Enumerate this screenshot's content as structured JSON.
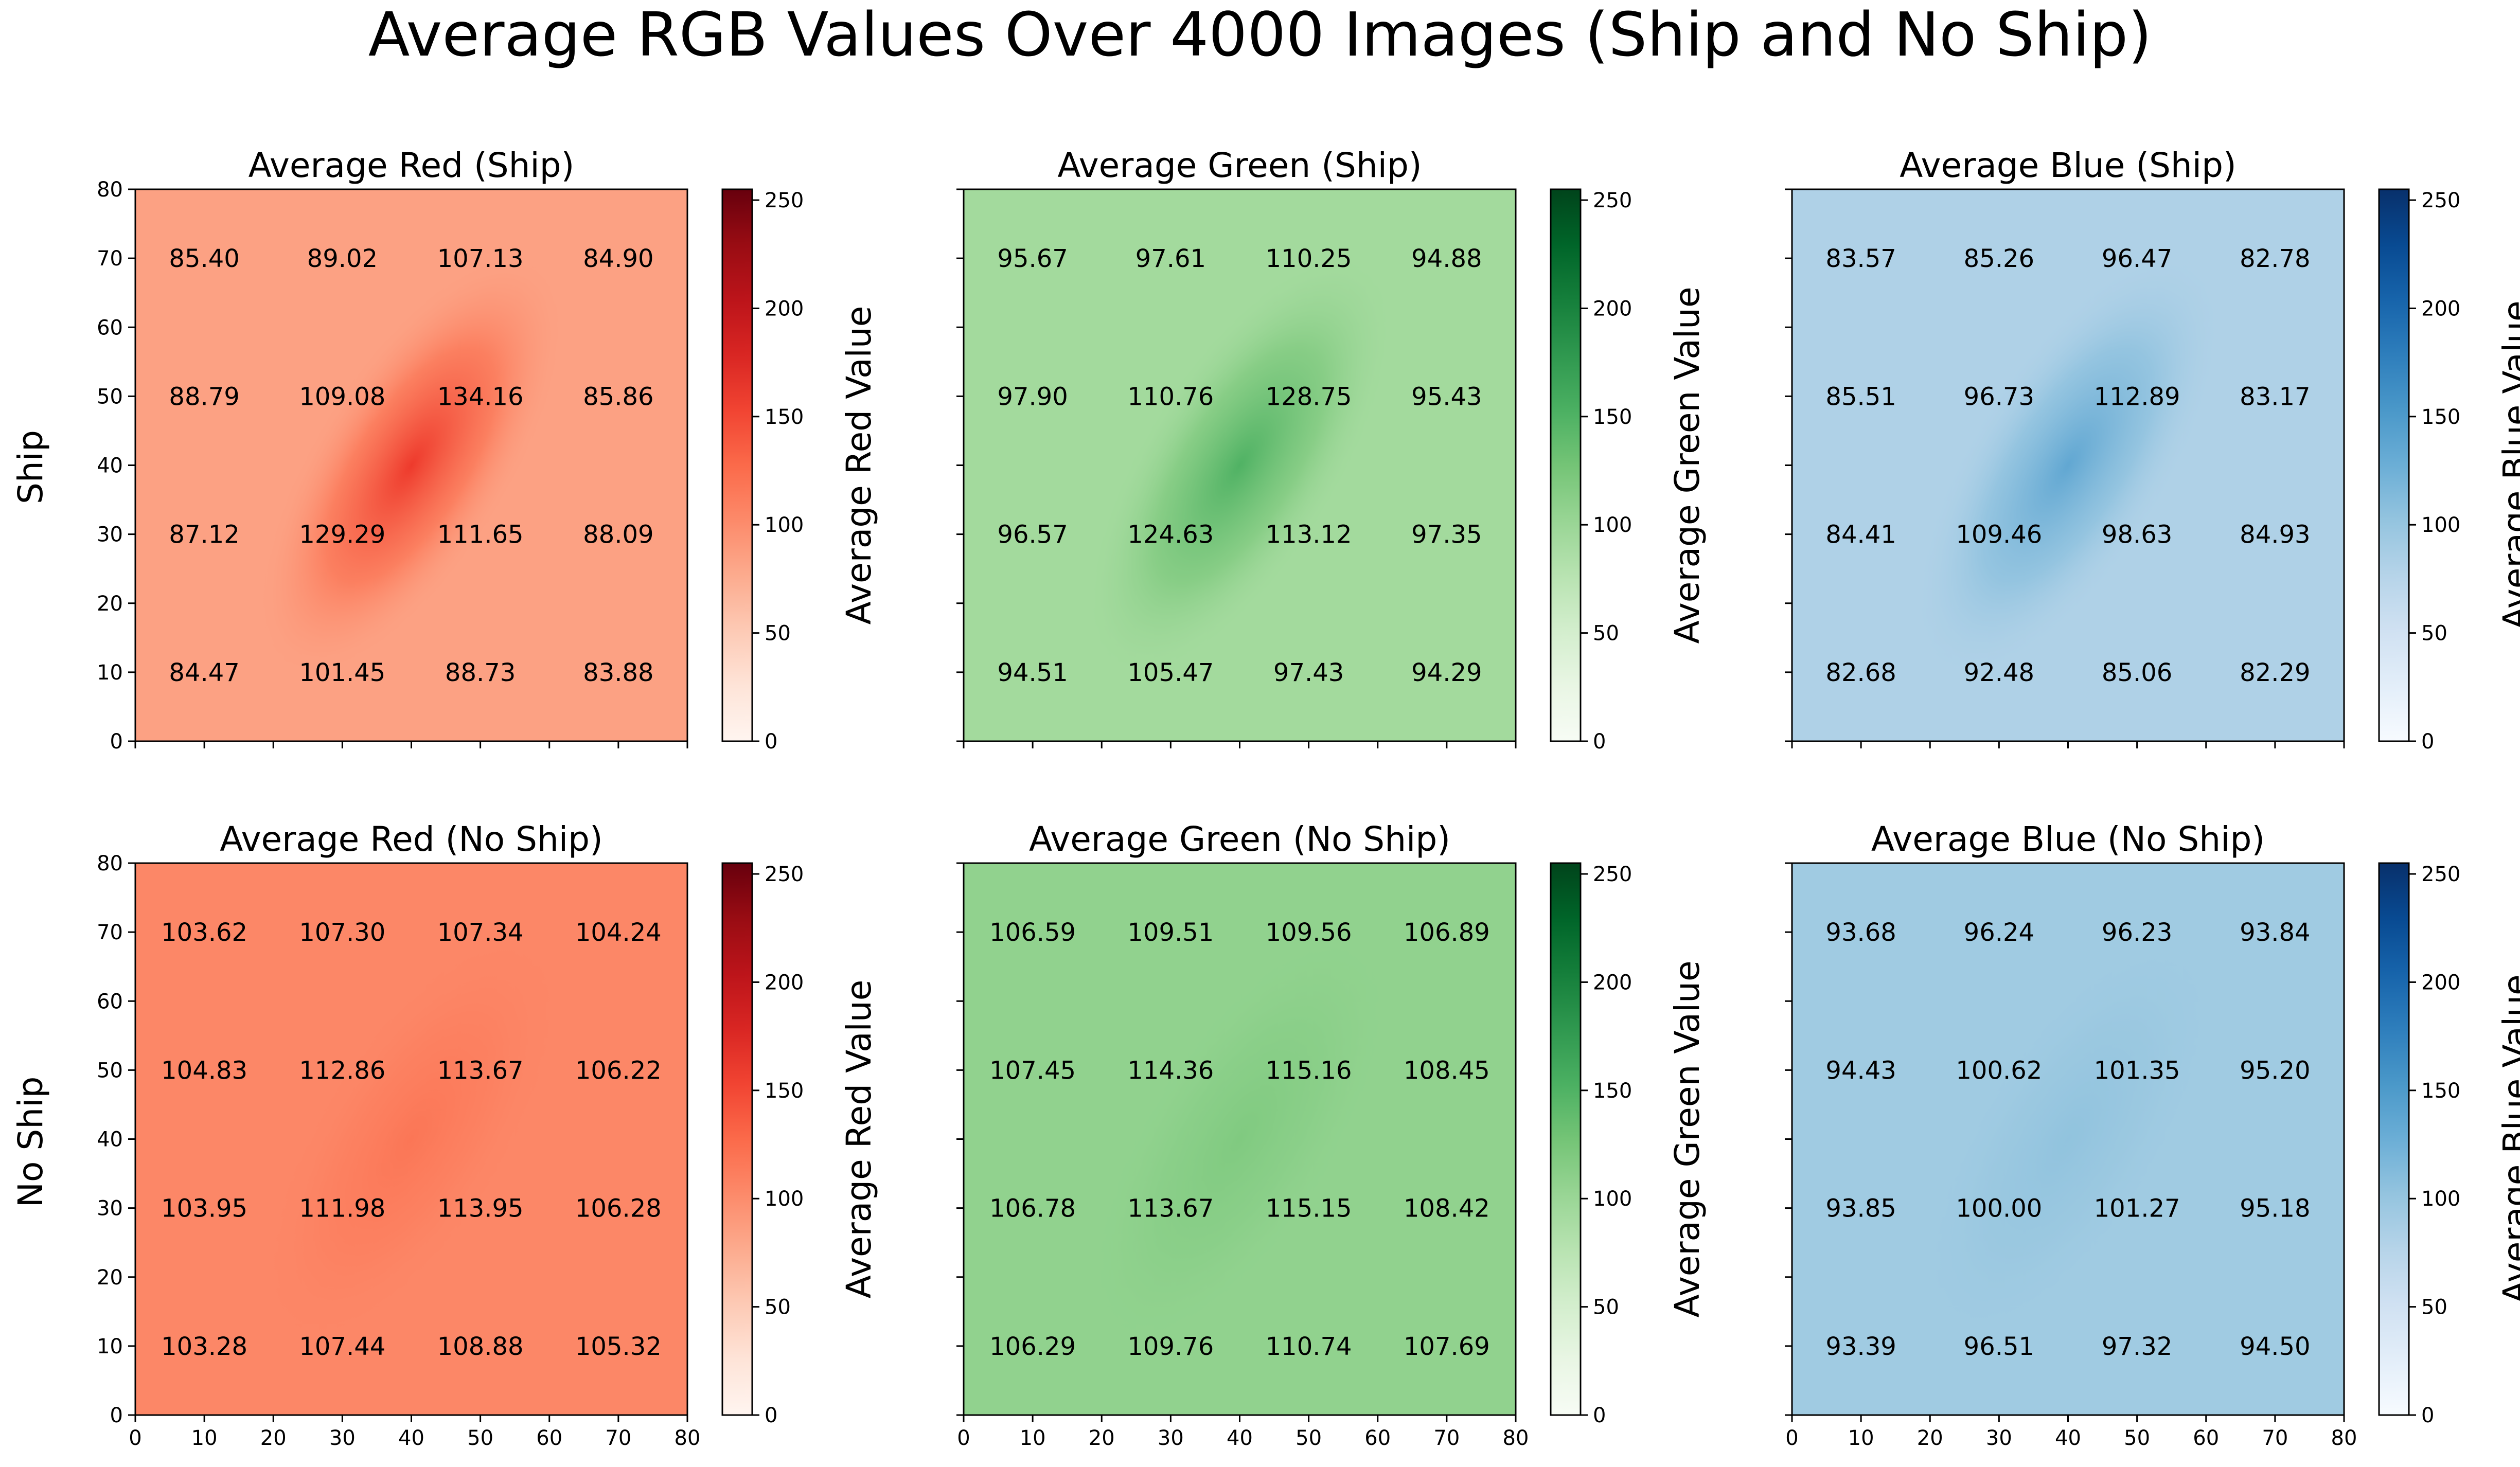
{
  "title": "Average RGB Values Over 4000 Images (Ship and No Ship)",
  "row_labels": [
    "Ship",
    "No Ship"
  ],
  "chart_data": [
    {
      "type": "heatmap",
      "title": "Average Red (Ship)",
      "color": "red",
      "colorbar_label": "Average Red Value",
      "colorbar_ticks": [
        0,
        50,
        100,
        150,
        200,
        250
      ],
      "clim": [
        0,
        255
      ],
      "xlim": [
        0,
        80
      ],
      "ylim": [
        0,
        80
      ],
      "xticks": [
        0,
        10,
        20,
        30,
        40,
        50,
        60,
        70,
        80
      ],
      "yticks": [
        0,
        10,
        20,
        30,
        40,
        50,
        60,
        70,
        80
      ],
      "cell_centers": [
        10,
        30,
        50,
        70
      ],
      "grid_values": [
        [
          84.47,
          101.45,
          88.73,
          83.88
        ],
        [
          87.12,
          129.29,
          111.65,
          88.09
        ],
        [
          88.79,
          109.08,
          134.16,
          85.86
        ],
        [
          85.4,
          89.02,
          107.13,
          84.9
        ]
      ],
      "grid_labels": [
        [
          "84.47",
          "101.45",
          "88.73",
          "83.88"
        ],
        [
          "87.12",
          "129.29",
          "111.65",
          "88.09"
        ],
        [
          "88.79",
          "109.08",
          "134.16",
          "85.86"
        ],
        [
          "85.40",
          "89.02",
          "107.13",
          "84.90"
        ]
      ],
      "background_value": 84,
      "peak_value": 160
    },
    {
      "type": "heatmap",
      "title": "Average Green (Ship)",
      "color": "green",
      "colorbar_label": "Average Green Value",
      "colorbar_ticks": [
        0,
        50,
        100,
        150,
        200,
        250
      ],
      "clim": [
        0,
        255
      ],
      "xlim": [
        0,
        80
      ],
      "ylim": [
        0,
        80
      ],
      "xticks": [
        0,
        10,
        20,
        30,
        40,
        50,
        60,
        70,
        80
      ],
      "yticks": [
        0,
        10,
        20,
        30,
        40,
        50,
        60,
        70,
        80
      ],
      "cell_centers": [
        10,
        30,
        50,
        70
      ],
      "grid_values": [
        [
          94.51,
          105.47,
          97.43,
          94.29
        ],
        [
          96.57,
          124.63,
          113.12,
          97.35
        ],
        [
          97.9,
          110.76,
          128.75,
          95.43
        ],
        [
          95.67,
          97.61,
          110.25,
          94.88
        ]
      ],
      "grid_labels": [
        [
          "94.51",
          "105.47",
          "97.43",
          "94.29"
        ],
        [
          "96.57",
          "124.63",
          "113.12",
          "97.35"
        ],
        [
          "97.90",
          "110.76",
          "128.75",
          "95.43"
        ],
        [
          "95.67",
          "97.61",
          "110.25",
          "94.88"
        ]
      ],
      "background_value": 94,
      "peak_value": 150
    },
    {
      "type": "heatmap",
      "title": "Average Blue (Ship)",
      "color": "blue",
      "colorbar_label": "Average Blue Value",
      "colorbar_ticks": [
        0,
        50,
        100,
        150,
        200,
        250
      ],
      "clim": [
        0,
        255
      ],
      "xlim": [
        0,
        80
      ],
      "ylim": [
        0,
        80
      ],
      "xticks": [
        0,
        10,
        20,
        30,
        40,
        50,
        60,
        70,
        80
      ],
      "yticks": [
        0,
        10,
        20,
        30,
        40,
        50,
        60,
        70,
        80
      ],
      "cell_centers": [
        10,
        30,
        50,
        70
      ],
      "grid_values": [
        [
          82.68,
          92.48,
          85.06,
          82.29
        ],
        [
          84.41,
          109.46,
          98.63,
          84.93
        ],
        [
          85.51,
          96.73,
          112.89,
          83.17
        ],
        [
          83.57,
          85.26,
          96.47,
          82.78
        ]
      ],
      "grid_labels": [
        [
          "82.68",
          "92.48",
          "85.06",
          "82.29"
        ],
        [
          "84.41",
          "109.46",
          "98.63",
          "84.93"
        ],
        [
          "85.51",
          "96.73",
          "112.89",
          "83.17"
        ],
        [
          "83.57",
          "85.26",
          "96.47",
          "82.78"
        ]
      ],
      "background_value": 82,
      "peak_value": 135
    },
    {
      "type": "heatmap",
      "title": "Average Red (No Ship)",
      "color": "red",
      "colorbar_label": "Average Red Value",
      "colorbar_ticks": [
        0,
        50,
        100,
        150,
        200,
        250
      ],
      "clim": [
        0,
        255
      ],
      "xlim": [
        0,
        80
      ],
      "ylim": [
        0,
        80
      ],
      "xticks": [
        0,
        10,
        20,
        30,
        40,
        50,
        60,
        70,
        80
      ],
      "yticks": [
        0,
        10,
        20,
        30,
        40,
        50,
        60,
        70,
        80
      ],
      "cell_centers": [
        10,
        30,
        50,
        70
      ],
      "grid_values": [
        [
          103.28,
          107.44,
          108.88,
          105.32
        ],
        [
          103.95,
          111.98,
          113.95,
          106.28
        ],
        [
          104.83,
          112.86,
          113.67,
          106.22
        ],
        [
          103.62,
          107.3,
          107.34,
          104.24
        ]
      ],
      "grid_labels": [
        [
          "103.28",
          "107.44",
          "108.88",
          "105.32"
        ],
        [
          "103.95",
          "111.98",
          "113.95",
          "106.28"
        ],
        [
          "104.83",
          "112.86",
          "113.67",
          "106.22"
        ],
        [
          "103.62",
          "107.30",
          "107.34",
          "104.24"
        ]
      ],
      "background_value": 104,
      "peak_value": 118
    },
    {
      "type": "heatmap",
      "title": "Average Green (No Ship)",
      "color": "green",
      "colorbar_label": "Average Green Value",
      "colorbar_ticks": [
        0,
        50,
        100,
        150,
        200,
        250
      ],
      "clim": [
        0,
        255
      ],
      "xlim": [
        0,
        80
      ],
      "ylim": [
        0,
        80
      ],
      "xticks": [
        0,
        10,
        20,
        30,
        40,
        50,
        60,
        70,
        80
      ],
      "yticks": [
        0,
        10,
        20,
        30,
        40,
        50,
        60,
        70,
        80
      ],
      "cell_centers": [
        10,
        30,
        50,
        70
      ],
      "grid_values": [
        [
          106.29,
          109.76,
          110.74,
          107.69
        ],
        [
          106.78,
          113.67,
          115.15,
          108.42
        ],
        [
          107.45,
          114.36,
          115.16,
          108.45
        ],
        [
          106.59,
          109.51,
          109.56,
          106.89
        ]
      ],
      "grid_labels": [
        [
          "106.29",
          "109.76",
          "110.74",
          "107.69"
        ],
        [
          "106.78",
          "113.67",
          "115.15",
          "108.42"
        ],
        [
          "107.45",
          "114.36",
          "115.16",
          "108.45"
        ],
        [
          "106.59",
          "109.51",
          "109.56",
          "106.89"
        ]
      ],
      "background_value": 107,
      "peak_value": 119
    },
    {
      "type": "heatmap",
      "title": "Average Blue (No Ship)",
      "color": "blue",
      "colorbar_label": "Average Blue Value",
      "colorbar_ticks": [
        0,
        50,
        100,
        150,
        200,
        250
      ],
      "clim": [
        0,
        255
      ],
      "xlim": [
        0,
        80
      ],
      "ylim": [
        0,
        80
      ],
      "xticks": [
        0,
        10,
        20,
        30,
        40,
        50,
        60,
        70,
        80
      ],
      "yticks": [
        0,
        10,
        20,
        30,
        40,
        50,
        60,
        70,
        80
      ],
      "cell_centers": [
        10,
        30,
        50,
        70
      ],
      "grid_values": [
        [
          93.39,
          96.51,
          97.32,
          94.5
        ],
        [
          93.85,
          100.0,
          101.27,
          95.18
        ],
        [
          94.43,
          100.62,
          101.35,
          95.2
        ],
        [
          93.68,
          96.24,
          96.23,
          93.84
        ]
      ],
      "grid_labels": [
        [
          "93.39",
          "96.51",
          "97.32",
          "94.50"
        ],
        [
          "93.85",
          "100.00",
          "101.27",
          "95.18"
        ],
        [
          "94.43",
          "100.62",
          "101.35",
          "95.20"
        ],
        [
          "93.68",
          "96.24",
          "96.23",
          "93.84"
        ]
      ],
      "background_value": 94,
      "peak_value": 104
    }
  ]
}
